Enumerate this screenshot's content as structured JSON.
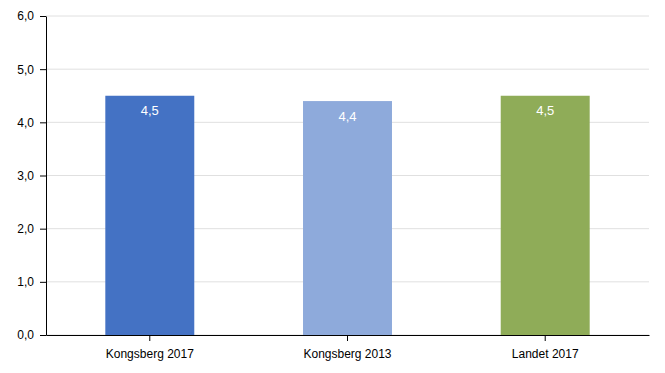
{
  "chart_data": {
    "type": "bar",
    "categories": [
      "Kongsberg 2017",
      "Kongsberg 2013",
      "Landet 2017"
    ],
    "values": [
      4.5,
      4.4,
      4.5
    ],
    "value_labels": [
      "4,5",
      "4,4",
      "4,5"
    ],
    "data_labels": true,
    "colors": [
      "#4472c4",
      "#8eaadb",
      "#8fac58"
    ],
    "ylim": [
      0,
      6.0
    ],
    "yticks": [
      {
        "value": 0.0,
        "label": "0,0"
      },
      {
        "value": 1.0,
        "label": "1,0"
      },
      {
        "value": 2.0,
        "label": "2,0"
      },
      {
        "value": 3.0,
        "label": "3,0"
      },
      {
        "value": 4.0,
        "label": "4,0"
      },
      {
        "value": 5.0,
        "label": "5,0"
      },
      {
        "value": 6.0,
        "label": "6,0"
      }
    ],
    "grid": true
  }
}
